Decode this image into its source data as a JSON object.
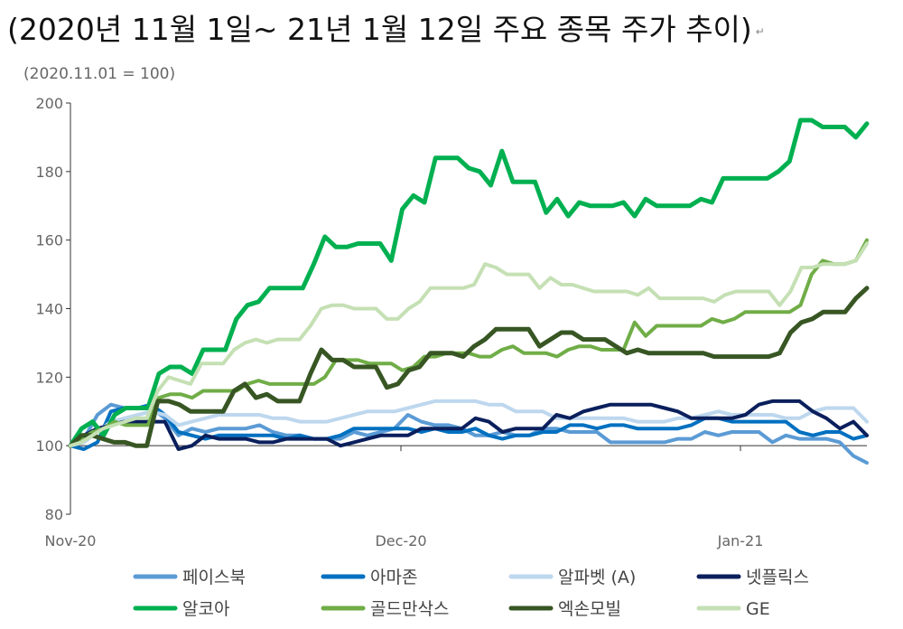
{
  "page": {
    "title": "(2020년 11월 1일~ 21년 1월 12일 주요 종목 주가 추이)",
    "title_mark": "↵",
    "subtitle": "(2020.11.01 = 100)"
  },
  "chart_data": {
    "type": "line",
    "title": "(2020년 11월 1일~ 21년 1월 12일 주요 종목 주가 추이)",
    "subtitle": "(2020.11.01 = 100)",
    "ylim": [
      80,
      200
    ],
    "yticks": [
      80,
      100,
      120,
      140,
      160,
      180,
      200
    ],
    "xlim": [
      0,
      49
    ],
    "xticks": [
      {
        "label": "Nov-20",
        "x": 0
      },
      {
        "label": "Dec-20",
        "x": 20
      },
      {
        "label": "Jan-21",
        "x": 40
      }
    ],
    "baseline": 100,
    "grid": false,
    "legend_position": "bottom",
    "series": [
      {
        "name": "페이스북",
        "color": "#5b9bd5",
        "width": 4,
        "values": [
          100,
          102,
          109,
          112,
          111,
          111,
          111,
          108,
          103,
          105,
          104,
          105,
          105,
          105,
          106,
          104,
          103,
          103,
          102,
          102,
          102,
          104,
          103,
          104,
          105,
          109,
          107,
          106,
          106,
          105,
          103,
          103,
          104,
          103,
          103,
          105,
          105,
          104,
          104,
          104,
          101,
          101,
          101,
          101,
          101,
          102,
          102,
          104,
          103,
          104,
          104,
          104,
          101,
          103,
          102,
          102,
          102,
          101,
          97,
          95
        ]
      },
      {
        "name": "아마존",
        "color": "#0070c0",
        "width": 4,
        "values": [
          100,
          99,
          101,
          110,
          111,
          111,
          112,
          109,
          104,
          103,
          102,
          103,
          103,
          103,
          103,
          103,
          102,
          103,
          102,
          102,
          103,
          105,
          105,
          105,
          105,
          105,
          104,
          105,
          104,
          104,
          105,
          103,
          102,
          103,
          103,
          104,
          104,
          106,
          106,
          105,
          106,
          106,
          105,
          105,
          105,
          105,
          106,
          108,
          108,
          107,
          107,
          107,
          107,
          107,
          104,
          103,
          104,
          104,
          102,
          103
        ]
      },
      {
        "name": "알파벳 (A)",
        "color": "#bdd7ee",
        "width": 4,
        "values": [
          100,
          101,
          104,
          107,
          108,
          109,
          110,
          109,
          106,
          107,
          108,
          109,
          109,
          109,
          109,
          108,
          108,
          107,
          107,
          107,
          108,
          109,
          110,
          110,
          110,
          111,
          112,
          113,
          113,
          113,
          113,
          112,
          112,
          110,
          110,
          110,
          108,
          108,
          108,
          108,
          108,
          108,
          107,
          107,
          107,
          108,
          108,
          109,
          110,
          109,
          109,
          109,
          109,
          108,
          108,
          110,
          111,
          111,
          111,
          107
        ]
      },
      {
        "name": "넷플릭스",
        "color": "#0a1f5c",
        "width": 4,
        "values": [
          100,
          103,
          105,
          106,
          107,
          107,
          107,
          107,
          99,
          100,
          103,
          102,
          102,
          102,
          101,
          101,
          102,
          102,
          102,
          102,
          100,
          101,
          102,
          103,
          103,
          103,
          105,
          105,
          105,
          105,
          108,
          107,
          104,
          105,
          105,
          105,
          109,
          108,
          110,
          111,
          112,
          112,
          112,
          112,
          111,
          110,
          108,
          108,
          108,
          108,
          109,
          112,
          113,
          113,
          113,
          110,
          108,
          105,
          107,
          103
        ]
      },
      {
        "name": "알코아",
        "color": "#00b050",
        "width": 5,
        "values": [
          100,
          105,
          107,
          103,
          109,
          111,
          111,
          111,
          121,
          123,
          123,
          121,
          128,
          128,
          128,
          137,
          141,
          142,
          146,
          146,
          146,
          146,
          153,
          161,
          158,
          158,
          159,
          159,
          159,
          154,
          169,
          173,
          171,
          184,
          184,
          184,
          181,
          180,
          176,
          186,
          177,
          177,
          177,
          168,
          172,
          167,
          171,
          170,
          170,
          170,
          171,
          167,
          172,
          170,
          170,
          170,
          170,
          172,
          171,
          178,
          178,
          178,
          178,
          178,
          180,
          183,
          195,
          195,
          193,
          193,
          193,
          190,
          194
        ]
      },
      {
        "name": "골드만삭스",
        "color": "#70ad47",
        "width": 4,
        "values": [
          100,
          102,
          104,
          105,
          107,
          106,
          106,
          106,
          114,
          115,
          115,
          114,
          116,
          116,
          116,
          116,
          118,
          119,
          118,
          118,
          118,
          118,
          118,
          120,
          125,
          125,
          125,
          124,
          124,
          124,
          122,
          123,
          126,
          126,
          127,
          127,
          127,
          126,
          126,
          128,
          129,
          127,
          127,
          127,
          126,
          128,
          129,
          129,
          128,
          128,
          128,
          136,
          132,
          135,
          135,
          135,
          135,
          135,
          137,
          136,
          137,
          139,
          139,
          139,
          139,
          139,
          141,
          150,
          154,
          153,
          153,
          154,
          160
        ]
      },
      {
        "name": "엑손모빌",
        "color": "#375623",
        "width": 5,
        "values": [
          100,
          103,
          103,
          102,
          101,
          101,
          100,
          100,
          113,
          113,
          112,
          110,
          110,
          110,
          110,
          116,
          118,
          114,
          115,
          113,
          113,
          113,
          121,
          128,
          125,
          125,
          123,
          123,
          123,
          117,
          118,
          122,
          123,
          127,
          127,
          127,
          126,
          129,
          131,
          134,
          134,
          134,
          134,
          129,
          131,
          133,
          133,
          131,
          131,
          131,
          129,
          127,
          128,
          127,
          127,
          127,
          127,
          127,
          127,
          126,
          126,
          126,
          126,
          126,
          126,
          127,
          133,
          136,
          137,
          139,
          139,
          139,
          143,
          146
        ]
      },
      {
        "name": "GE",
        "color": "#c5e0b4",
        "width": 4,
        "values": [
          100,
          101,
          103,
          105,
          106,
          107,
          108,
          108,
          116,
          120,
          119,
          118,
          124,
          124,
          124,
          128,
          130,
          131,
          130,
          131,
          131,
          131,
          135,
          140,
          141,
          141,
          140,
          140,
          140,
          137,
          137,
          140,
          142,
          146,
          146,
          146,
          146,
          147,
          153,
          152,
          150,
          150,
          150,
          146,
          149,
          147,
          147,
          146,
          145,
          145,
          145,
          145,
          144,
          146,
          143,
          143,
          143,
          143,
          143,
          142,
          144,
          145,
          145,
          145,
          145,
          141,
          145,
          152,
          152,
          153,
          153,
          153,
          154,
          159
        ]
      }
    ]
  }
}
